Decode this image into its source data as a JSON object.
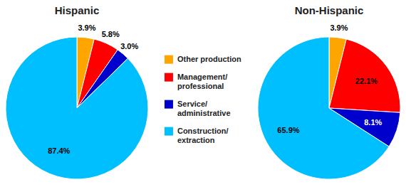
{
  "chart_data": [
    {
      "type": "pie",
      "title": "Hispanic",
      "categories": [
        "Other production",
        "Management/\nprofessional",
        "Service/\nadministrative",
        "Construction/\nextraction"
      ],
      "values": [
        3.9,
        5.8,
        3.0,
        87.4
      ],
      "value_labels": [
        "3.9%",
        "5.8%",
        "3.0%",
        "87.4%"
      ],
      "colors": [
        "#ffa500",
        "#ff0000",
        "#0000cc",
        "#00bfff"
      ],
      "data_labels": true,
      "legend": "center"
    },
    {
      "type": "pie",
      "title": "Non-Hispanic",
      "categories": [
        "Other production",
        "Management/\nprofessional",
        "Service/\nadministrative",
        "Construction/\nextraction"
      ],
      "values": [
        3.9,
        22.1,
        8.1,
        65.9
      ],
      "value_labels": [
        "3.9%",
        "22.1%",
        "8.1%",
        "65.9%"
      ],
      "colors": [
        "#ffa500",
        "#ff0000",
        "#0000cc",
        "#00bfff"
      ],
      "data_labels": true
    }
  ]
}
